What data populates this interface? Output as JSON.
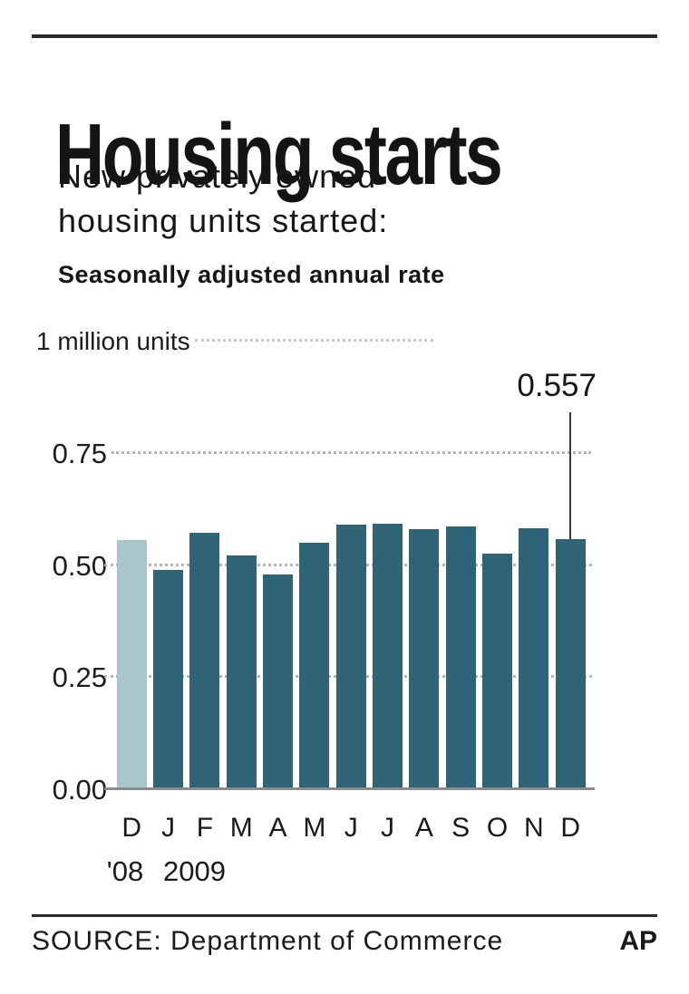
{
  "chart_data": {
    "type": "bar",
    "title": "Housing starts",
    "subtitle_lines": [
      "New privately owned",
      "housing units started:"
    ],
    "note": "Seasonally adjusted annual rate",
    "unit_label": "1 million units",
    "categories": [
      "D",
      "J",
      "F",
      "M",
      "A",
      "M",
      "J",
      "J",
      "A",
      "S",
      "O",
      "N",
      "D"
    ],
    "years": [
      {
        "label": "'08",
        "index": 0
      },
      {
        "label": "2009",
        "index": 1
      }
    ],
    "values": [
      0.556,
      0.488,
      0.572,
      0.521,
      0.478,
      0.55,
      0.59,
      0.592,
      0.58,
      0.585,
      0.525,
      0.582,
      0.557
    ],
    "highlight_index": 0,
    "annotation": {
      "label": "0.557",
      "index": 12
    },
    "ylim": [
      0,
      1.0
    ],
    "yticks": [
      {
        "value": 1.0,
        "label": "1 million units",
        "grid": "wavy"
      },
      {
        "value": 0.75,
        "label": "0.75",
        "grid": "dotted-long"
      },
      {
        "value": 0.5,
        "label": "0.50",
        "grid": "dotted-short"
      },
      {
        "value": 0.25,
        "label": "0.25",
        "grid": "dotted-short"
      },
      {
        "value": 0.0,
        "label": "0.00",
        "grid": "baseline"
      }
    ],
    "legend": "none",
    "colors": {
      "bar": "#2f6376",
      "highlight_bar": "#aac6cd",
      "baseline": "#8c8c8c",
      "grid": "#b5b5b5",
      "annotation_line": "#3a3a3a"
    },
    "source": "SOURCE: Department of Commerce",
    "credit": "AP"
  }
}
